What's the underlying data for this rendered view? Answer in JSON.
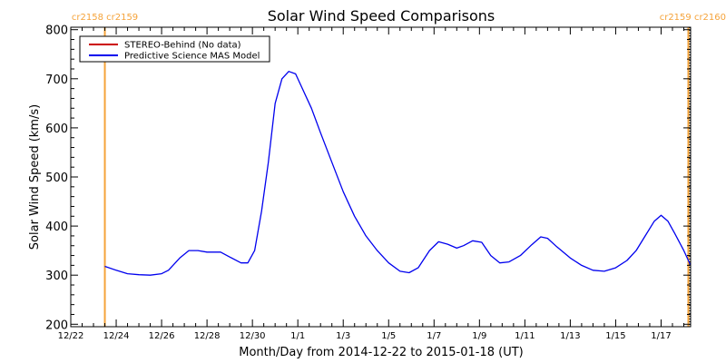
{
  "chart_data": {
    "type": "line",
    "title": "Solar Wind Speed Comparisons",
    "xlabel": "Month/Day from 2014-12-22 to 2015-01-18 (UT)",
    "ylabel": "Solar Wind Speed (km/s)",
    "ylim": [
      195,
      805
    ],
    "xlim_days": [
      0,
      27.3
    ],
    "y_ticks": [
      200,
      300,
      400,
      500,
      600,
      700,
      800
    ],
    "x_ticks": [
      {
        "day": 0,
        "label": "12/22"
      },
      {
        "day": 2,
        "label": "12/24"
      },
      {
        "day": 4,
        "label": "12/26"
      },
      {
        "day": 6,
        "label": "12/28"
      },
      {
        "day": 8,
        "label": "12/30"
      },
      {
        "day": 10,
        "label": "1/1"
      },
      {
        "day": 12,
        "label": "1/3"
      },
      {
        "day": 14,
        "label": "1/5"
      },
      {
        "day": 16,
        "label": "1/7"
      },
      {
        "day": 18,
        "label": "1/9"
      },
      {
        "day": 20,
        "label": "1/11"
      },
      {
        "day": 22,
        "label": "1/13"
      },
      {
        "day": 24,
        "label": "1/15"
      },
      {
        "day": 26,
        "label": "1/17"
      }
    ],
    "carrington_markers": [
      {
        "day": 1.5,
        "label": "cr2158 cr2159"
      },
      {
        "day": 27.2,
        "label": "cr2159 cr2160"
      }
    ],
    "legend_placement": "top-left",
    "series": [
      {
        "name": "STEREO-Behind (No data)",
        "color": "#cc0000",
        "x": [],
        "y": []
      },
      {
        "name": "Predictive Science MAS Model",
        "color": "#0000ee",
        "x": [
          1.5,
          2.0,
          2.5,
          3.0,
          3.5,
          4.0,
          4.3,
          4.8,
          5.2,
          5.6,
          6.0,
          6.6,
          7.0,
          7.5,
          7.8,
          8.1,
          8.4,
          8.7,
          9.0,
          9.3,
          9.6,
          9.9,
          10.2,
          10.6,
          11.0,
          11.5,
          12.0,
          12.5,
          13.0,
          13.5,
          14.0,
          14.5,
          14.9,
          15.3,
          15.8,
          16.2,
          16.6,
          17.0,
          17.3,
          17.7,
          18.1,
          18.5,
          18.9,
          19.3,
          19.8,
          20.3,
          20.7,
          21.0,
          21.4,
          22.0,
          22.5,
          23.0,
          23.5,
          24.0,
          24.5,
          24.9,
          25.3,
          25.7,
          26.0,
          26.3,
          26.6,
          27.0,
          27.3
        ],
        "y": [
          318,
          310,
          303,
          301,
          300,
          303,
          310,
          335,
          350,
          350,
          347,
          347,
          337,
          325,
          325,
          350,
          430,
          530,
          650,
          700,
          715,
          710,
          680,
          640,
          590,
          530,
          470,
          420,
          380,
          350,
          325,
          308,
          305,
          315,
          350,
          368,
          363,
          355,
          360,
          370,
          367,
          340,
          325,
          327,
          340,
          362,
          378,
          375,
          358,
          335,
          320,
          310,
          308,
          315,
          330,
          350,
          380,
          410,
          422,
          410,
          385,
          350,
          320
        ]
      }
    ]
  }
}
